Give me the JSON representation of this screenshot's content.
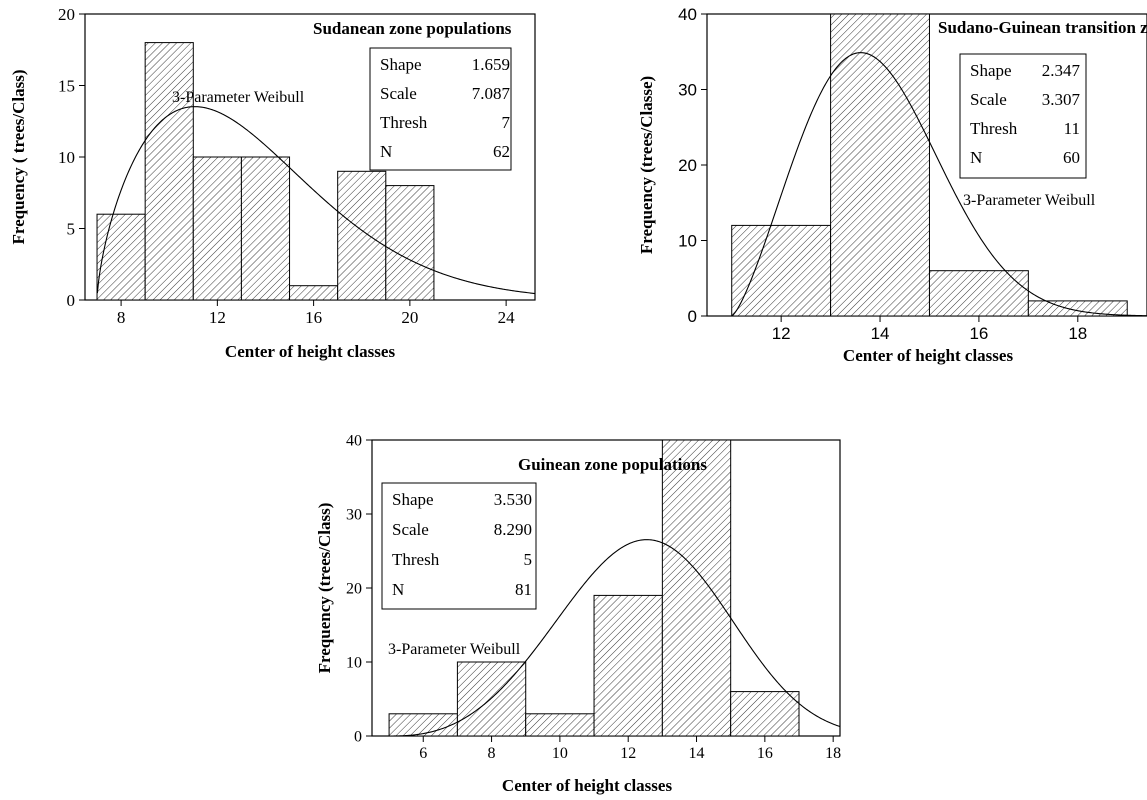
{
  "chart_data": [
    {
      "type": "bar",
      "title": "Sudanean zone populations",
      "xlabel": "Center of  height classes",
      "ylabel": "Frequency ( trees/Class)",
      "bin_width": 2,
      "categories": [
        8,
        10,
        12,
        14,
        16,
        18,
        20
      ],
      "values": [
        6,
        18,
        10,
        10,
        1,
        9,
        8
      ],
      "xlim": [
        6.5,
        25.2
      ],
      "ylim": [
        0,
        20
      ],
      "xticks": [
        8,
        12,
        16,
        20,
        24
      ],
      "yticks": [
        0,
        5,
        10,
        15,
        20
      ],
      "fit": {
        "label": "3-Parameter Weibull",
        "shape": 1.659,
        "scale": 7.087,
        "thresh": 7,
        "n": 62,
        "stats": [
          {
            "label": "Shape",
            "value": "1.659"
          },
          {
            "label": "Scale",
            "value": "7.087"
          },
          {
            "label": "Thresh",
            "value": "7"
          },
          {
            "label": "N",
            "value": "62"
          }
        ]
      }
    },
    {
      "type": "bar",
      "title": "Sudano-Guinean transition zone populations",
      "xlabel": "Center  of  height  classes",
      "ylabel": "Frequency (trees/Classe)",
      "bin_width": 2,
      "categories": [
        12,
        14,
        16,
        18
      ],
      "values": [
        12,
        40,
        6,
        2
      ],
      "xlim": [
        10.5,
        19.4
      ],
      "ylim": [
        0,
        40
      ],
      "xticks": [
        12,
        14,
        16,
        18
      ],
      "yticks": [
        0,
        10,
        20,
        30,
        40
      ],
      "fit": {
        "label": "3-Parameter Weibull",
        "shape": 2.347,
        "scale": 3.307,
        "thresh": 11,
        "n": 60,
        "stats": [
          {
            "label": "Shape",
            "value": "2.347"
          },
          {
            "label": "Scale",
            "value": "3.307"
          },
          {
            "label": "Thresh",
            "value": "11"
          },
          {
            "label": "N",
            "value": "60"
          }
        ]
      }
    },
    {
      "type": "bar",
      "title": "Guinean zone populations",
      "xlabel": "Center of  height classes",
      "ylabel": "Frequency (trees/Class)",
      "bin_width": 2,
      "categories": [
        6,
        8,
        10,
        12,
        14,
        16
      ],
      "values": [
        3,
        10,
        3,
        19,
        40,
        6
      ],
      "xlim": [
        4.5,
        18.2
      ],
      "ylim": [
        0,
        40
      ],
      "xticks": [
        6,
        8,
        10,
        12,
        14,
        16,
        18
      ],
      "yticks": [
        0,
        10,
        20,
        30,
        40
      ],
      "fit": {
        "label": "3-Parameter Weibull",
        "shape": 3.53,
        "scale": 8.29,
        "thresh": 5,
        "n": 81,
        "stats": [
          {
            "label": "Shape",
            "value": "3.530"
          },
          {
            "label": "Scale",
            "value": "8.290"
          },
          {
            "label": "Thresh",
            "value": "5"
          },
          {
            "label": "N",
            "value": "81"
          }
        ]
      }
    }
  ]
}
